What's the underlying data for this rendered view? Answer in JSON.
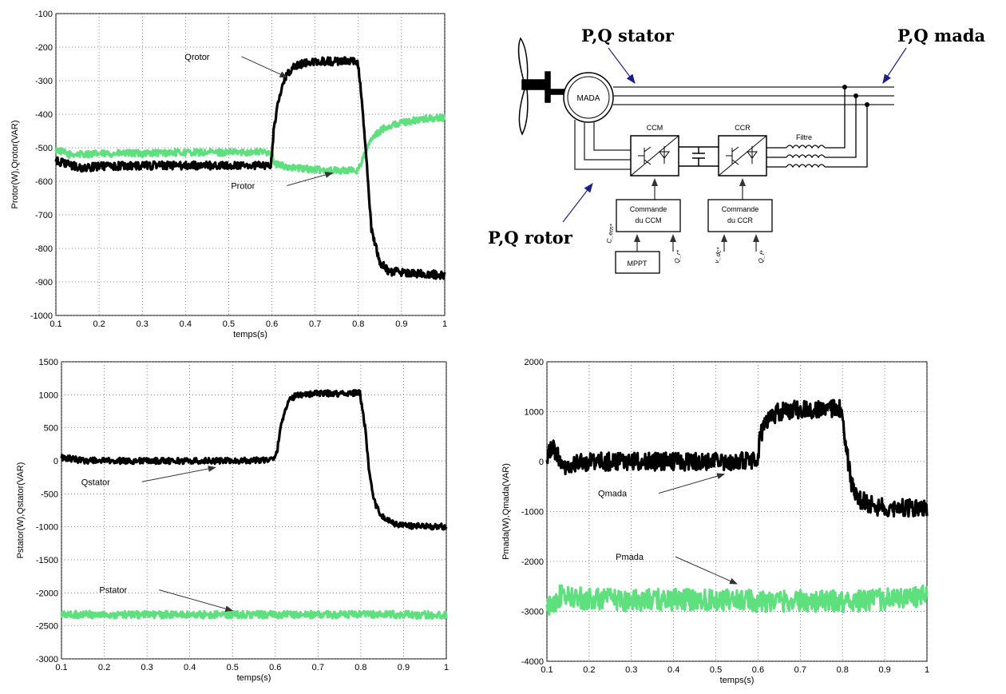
{
  "chart_data": [
    {
      "id": "rotor",
      "type": "line",
      "xlabel": "temps(s)",
      "ylabel": "Protor(W),Qrotor(VAR)",
      "xlim": [
        0.1,
        1
      ],
      "ylim": [
        -1000,
        -100
      ],
      "xticks": [
        0.1,
        0.2,
        0.3,
        0.4,
        0.5,
        0.6,
        0.7,
        0.8,
        0.9,
        1
      ],
      "xtick_labels": [
        "0.1",
        "0.2",
        "0.3",
        "0.4",
        "0.5",
        "0.6",
        "0.7",
        "0.8",
        "0.9",
        "1"
      ],
      "yticks": [
        -100,
        -200,
        -300,
        -400,
        -500,
        -600,
        -700,
        -800,
        -900,
        -1000
      ],
      "ytick_labels": [
        "-100",
        "-200",
        "-300",
        "-400",
        "-500",
        "-600",
        "-700",
        "-800",
        "-900",
        "-1000"
      ],
      "series": [
        {
          "name": "Qrotor",
          "color": "#000000",
          "noise": 12,
          "points": [
            [
              0.1,
              -540
            ],
            [
              0.13,
              -550
            ],
            [
              0.16,
              -562
            ],
            [
              0.2,
              -555
            ],
            [
              0.3,
              -553
            ],
            [
              0.4,
              -553
            ],
            [
              0.5,
              -553
            ],
            [
              0.598,
              -553
            ],
            [
              0.605,
              -440
            ],
            [
              0.615,
              -360
            ],
            [
              0.63,
              -290
            ],
            [
              0.65,
              -255
            ],
            [
              0.7,
              -243
            ],
            [
              0.75,
              -242
            ],
            [
              0.798,
              -240
            ],
            [
              0.81,
              -380
            ],
            [
              0.82,
              -560
            ],
            [
              0.83,
              -740
            ],
            [
              0.85,
              -840
            ],
            [
              0.87,
              -868
            ],
            [
              0.9,
              -872
            ],
            [
              1.0,
              -880
            ]
          ]
        },
        {
          "name": "Protor",
          "color": "#5fe07e",
          "noise": 10,
          "points": [
            [
              0.1,
              -505
            ],
            [
              0.13,
              -520
            ],
            [
              0.2,
              -518
            ],
            [
              0.3,
              -516
            ],
            [
              0.4,
              -514
            ],
            [
              0.5,
              -514
            ],
            [
              0.598,
              -512
            ],
            [
              0.605,
              -548
            ],
            [
              0.65,
              -560
            ],
            [
              0.7,
              -565
            ],
            [
              0.75,
              -568
            ],
            [
              0.798,
              -568
            ],
            [
              0.81,
              -535
            ],
            [
              0.83,
              -475
            ],
            [
              0.86,
              -440
            ],
            [
              0.9,
              -425
            ],
            [
              0.95,
              -415
            ],
            [
              1.0,
              -410
            ]
          ]
        }
      ],
      "annotations": [
        {
          "text": "Qrotor",
          "at": [
            0.635,
            -290
          ]
        },
        {
          "text": "Protor",
          "at": [
            0.74,
            -575
          ]
        }
      ]
    },
    {
      "id": "stator",
      "type": "line",
      "xlabel": "temps(s)",
      "ylabel": "Pstator(W),Qstator(VAR)",
      "xlim": [
        0.1,
        1
      ],
      "ylim": [
        -3000,
        1500
      ],
      "xticks": [
        0.1,
        0.2,
        0.3,
        0.4,
        0.5,
        0.6,
        0.7,
        0.8,
        0.9,
        1
      ],
      "xtick_labels": [
        "0.1",
        "0.2",
        "0.3",
        "0.4",
        "0.5",
        "0.6",
        "0.7",
        "0.8",
        "0.9",
        "1"
      ],
      "yticks": [
        1500,
        1000,
        500,
        0,
        -500,
        -1000,
        -1500,
        -2000,
        -2500,
        -3000
      ],
      "ytick_labels": [
        "1500",
        "1000",
        "500",
        "0",
        "-500",
        "-1000",
        "-1500",
        "-2000",
        "-2500",
        "-3000"
      ],
      "series": [
        {
          "name": "Qstator",
          "color": "#000000",
          "noise": 45,
          "points": [
            [
              0.1,
              50
            ],
            [
              0.15,
              5
            ],
            [
              0.2,
              0
            ],
            [
              0.3,
              0
            ],
            [
              0.4,
              0
            ],
            [
              0.5,
              0
            ],
            [
              0.598,
              20
            ],
            [
              0.605,
              180
            ],
            [
              0.615,
              600
            ],
            [
              0.63,
              900
            ],
            [
              0.65,
              1000
            ],
            [
              0.7,
              1020
            ],
            [
              0.75,
              1020
            ],
            [
              0.798,
              1030
            ],
            [
              0.81,
              500
            ],
            [
              0.82,
              -200
            ],
            [
              0.83,
              -600
            ],
            [
              0.85,
              -850
            ],
            [
              0.88,
              -960
            ],
            [
              0.92,
              -990
            ],
            [
              1.0,
              -1000
            ]
          ]
        },
        {
          "name": "Pstator",
          "color": "#5fe07e",
          "noise": 55,
          "points": [
            [
              0.1,
              -2330
            ],
            [
              0.2,
              -2330
            ],
            [
              0.3,
              -2330
            ],
            [
              0.4,
              -2330
            ],
            [
              0.5,
              -2330
            ],
            [
              0.6,
              -2330
            ],
            [
              0.7,
              -2330
            ],
            [
              0.8,
              -2330
            ],
            [
              0.9,
              -2330
            ],
            [
              1.0,
              -2340
            ]
          ]
        }
      ],
      "annotations": [
        {
          "text": "Qstator",
          "at": [
            0.46,
            -100
          ]
        },
        {
          "text": "Pstator",
          "at": [
            0.5,
            -2270
          ]
        }
      ]
    },
    {
      "id": "mada",
      "type": "line",
      "xlabel": "temps(s)",
      "ylabel": "Pmada(W),Qmada(VAR)",
      "xlim": [
        0.1,
        1
      ],
      "ylim": [
        -4000,
        2000
      ],
      "xticks": [
        0.1,
        0.2,
        0.3,
        0.4,
        0.5,
        0.6,
        0.7,
        0.8,
        0.9,
        1
      ],
      "xtick_labels": [
        "0.1",
        "0.2",
        "0.3",
        "0.4",
        "0.5",
        "0.6",
        "0.7",
        "0.8",
        "0.9",
        "1"
      ],
      "yticks": [
        2000,
        1000,
        0,
        -1000,
        -2000,
        -3000,
        -4000
      ],
      "ytick_labels": [
        "2000",
        "1000",
        "0",
        "-1000",
        "-2000",
        "-3000",
        "-4000"
      ],
      "series": [
        {
          "name": "Qmada",
          "color": "#000000",
          "noise": 180,
          "points": [
            [
              0.1,
              100
            ],
            [
              0.11,
              300
            ],
            [
              0.12,
              200
            ],
            [
              0.14,
              -100
            ],
            [
              0.17,
              -50
            ],
            [
              0.2,
              0
            ],
            [
              0.3,
              0
            ],
            [
              0.4,
              0
            ],
            [
              0.5,
              0
            ],
            [
              0.598,
              10
            ],
            [
              0.605,
              500
            ],
            [
              0.62,
              850
            ],
            [
              0.65,
              1000
            ],
            [
              0.7,
              1050
            ],
            [
              0.75,
              1050
            ],
            [
              0.798,
              1060
            ],
            [
              0.81,
              200
            ],
            [
              0.82,
              -400
            ],
            [
              0.84,
              -750
            ],
            [
              0.88,
              -900
            ],
            [
              1.0,
              -950
            ]
          ]
        },
        {
          "name": "Pmada",
          "color": "#5fe07e",
          "noise": 220,
          "points": [
            [
              0.1,
              -2950
            ],
            [
              0.13,
              -2700
            ],
            [
              0.2,
              -2750
            ],
            [
              0.3,
              -2780
            ],
            [
              0.4,
              -2770
            ],
            [
              0.5,
              -2760
            ],
            [
              0.6,
              -2790
            ],
            [
              0.7,
              -2790
            ],
            [
              0.8,
              -2800
            ],
            [
              0.9,
              -2760
            ],
            [
              1.0,
              -2700
            ]
          ]
        }
      ],
      "annotations": [
        {
          "text": "Qmada",
          "at": [
            0.52,
            -250
          ]
        },
        {
          "text": "Pmada",
          "at": [
            0.55,
            -2450
          ]
        }
      ]
    }
  ],
  "diagram": {
    "labels": {
      "pq_stator": "P,Q stator",
      "pq_mada": "P,Q mada",
      "pq_rotor": "P,Q rotor",
      "mada": "MADA",
      "ccm": "CCM",
      "ccr": "CCR",
      "filtre": "Filtre",
      "cmd_ccm_1": "Commande",
      "cmd_ccm_2": "du CCM",
      "cmd_ccr_1": "Commande",
      "cmd_ccr_2": "du CCR",
      "mppt": "MPPT",
      "in_cem": "C_em*",
      "in_qr": "Q_r*",
      "in_vdc": "v_dc*",
      "in_qf": "Q_f*"
    }
  }
}
